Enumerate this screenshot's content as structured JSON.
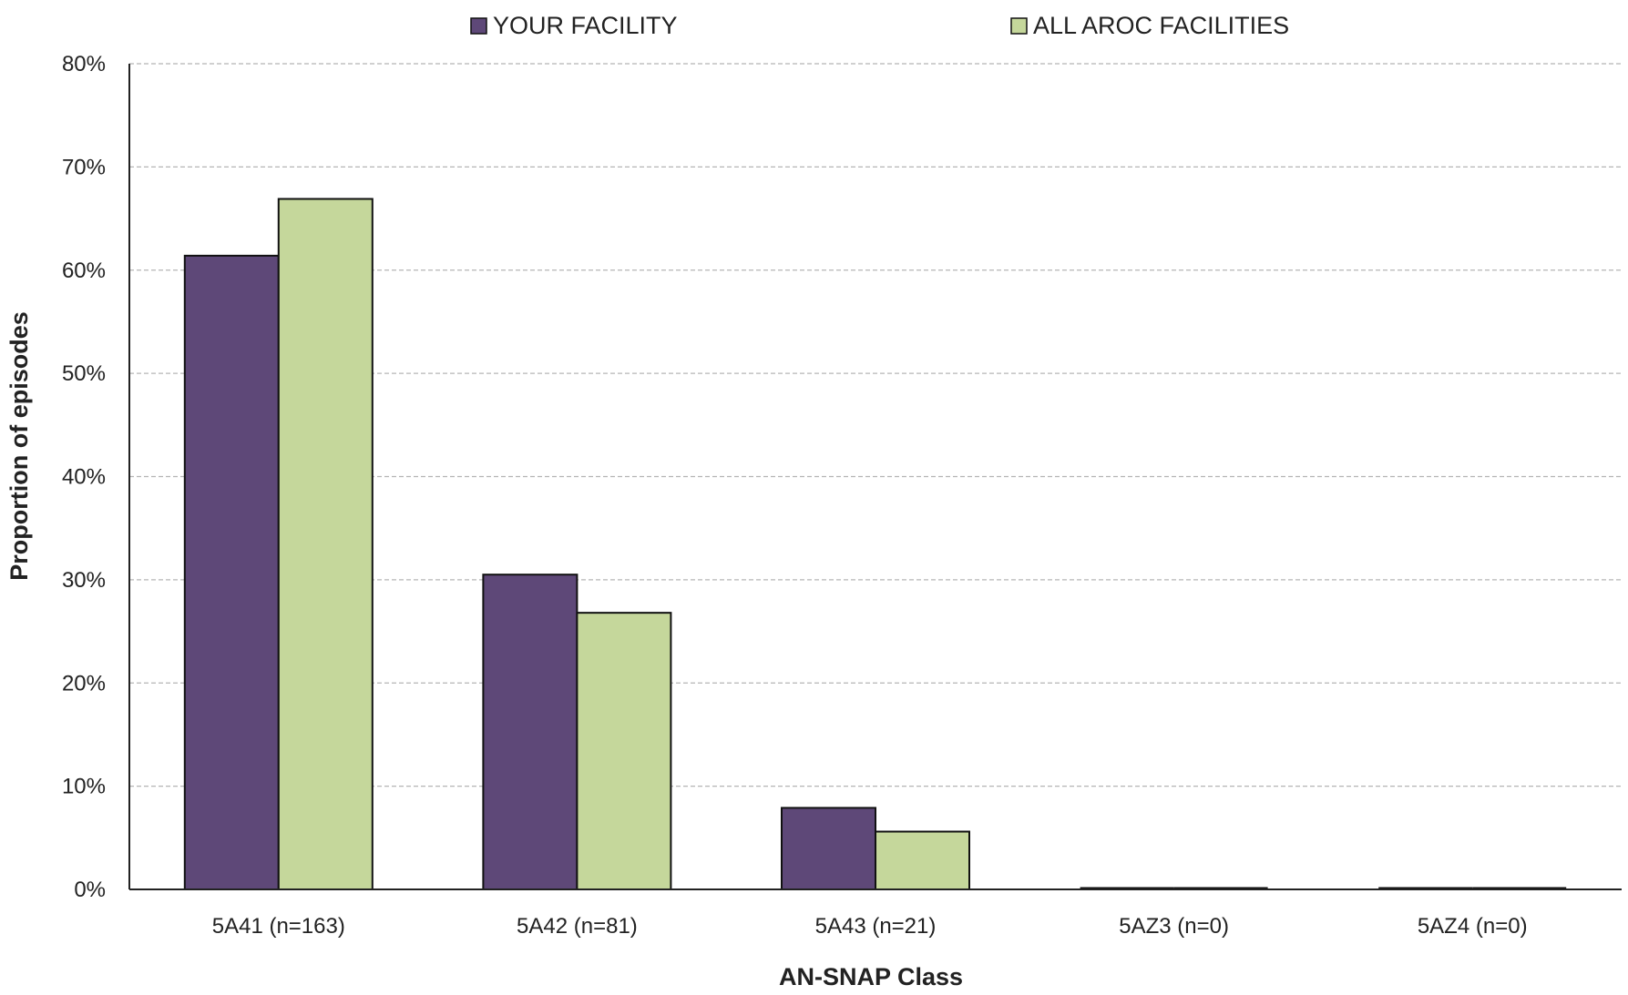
{
  "chart_data": {
    "type": "bar",
    "xlabel": "AN-SNAP Class",
    "ylabel": "Proportion of episodes",
    "categories": [
      "5A41 (n=163)",
      "5A42 (n=81)",
      "5A43 (n=21)",
      "5AZ3 (n=0)",
      "5AZ4 (n=0)"
    ],
    "series": [
      {
        "name": "YOUR FACILITY",
        "color": "#5e4878",
        "values": [
          61.4,
          30.5,
          7.9,
          0,
          0
        ]
      },
      {
        "name": "ALL AROC FACILITIES",
        "color": "#c5d79b",
        "values": [
          66.9,
          26.8,
          5.6,
          0,
          0
        ]
      }
    ],
    "ylim": [
      0,
      80
    ],
    "yticks": [
      0,
      10,
      20,
      30,
      40,
      50,
      60,
      70,
      80
    ],
    "ytick_labels": [
      "0%",
      "10%",
      "20%",
      "30%",
      "40%",
      "50%",
      "60%",
      "70%",
      "80%"
    ],
    "grid": true,
    "legend_position": "top"
  }
}
